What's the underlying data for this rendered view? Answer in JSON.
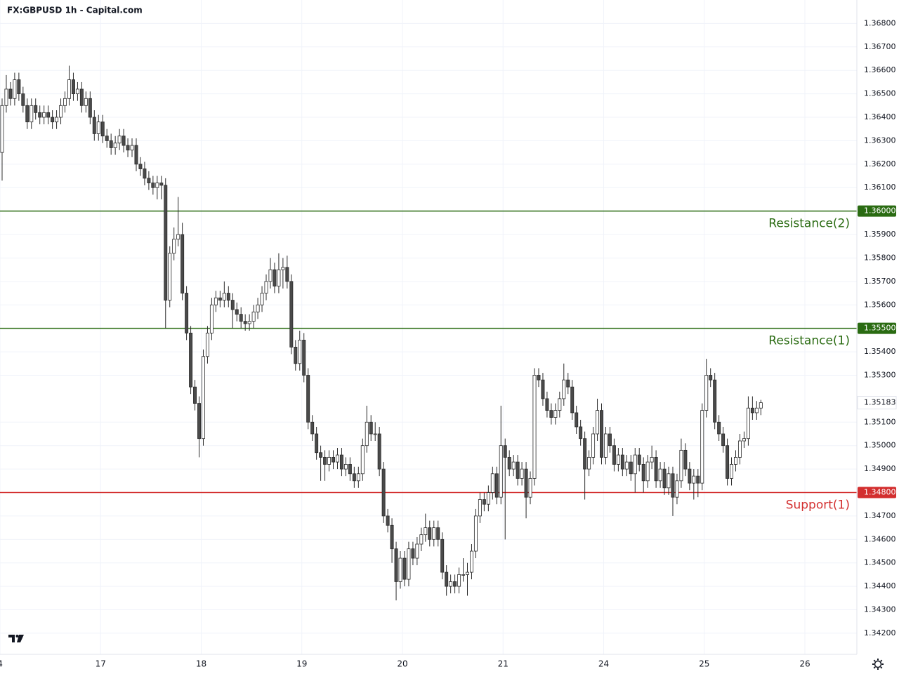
{
  "chart_data": {
    "type": "candlestick",
    "title": "FX:GBPUSD 1h - Capital.com",
    "xlim": [
      0,
      204.4
    ],
    "ylim": [
      1.3411,
      1.369
    ],
    "grid": true,
    "up_color": "#ffffff",
    "down_color": "#4a4a4a",
    "xticks": [
      {
        "value": 0,
        "label": "4"
      },
      {
        "value": 24,
        "label": "17"
      },
      {
        "value": 48,
        "label": "18"
      },
      {
        "value": 72,
        "label": "19"
      },
      {
        "value": 96,
        "label": "20"
      },
      {
        "value": 120,
        "label": "21"
      },
      {
        "value": 144,
        "label": "24"
      },
      {
        "value": 168,
        "label": "25"
      },
      {
        "value": 192,
        "label": "26"
      }
    ],
    "yticks": [
      {
        "value": 1.368,
        "label": "1.36800"
      },
      {
        "value": 1.367,
        "label": "1.36700"
      },
      {
        "value": 1.366,
        "label": "1.36600"
      },
      {
        "value": 1.365,
        "label": "1.36500"
      },
      {
        "value": 1.364,
        "label": "1.36400"
      },
      {
        "value": 1.363,
        "label": "1.36300"
      },
      {
        "value": 1.362,
        "label": "1.36200"
      },
      {
        "value": 1.361,
        "label": "1.36100"
      },
      {
        "value": 1.359,
        "label": "1.35900"
      },
      {
        "value": 1.358,
        "label": "1.35800"
      },
      {
        "value": 1.357,
        "label": "1.35700"
      },
      {
        "value": 1.356,
        "label": "1.35600"
      },
      {
        "value": 1.354,
        "label": "1.35400"
      },
      {
        "value": 1.353,
        "label": "1.35300"
      },
      {
        "value": 1.351,
        "label": "1.35100"
      },
      {
        "value": 1.35,
        "label": "1.35000"
      },
      {
        "value": 1.349,
        "label": "1.34900"
      },
      {
        "value": 1.347,
        "label": "1.34700"
      },
      {
        "value": 1.346,
        "label": "1.34600"
      },
      {
        "value": 1.345,
        "label": "1.34500"
      },
      {
        "value": 1.344,
        "label": "1.34400"
      },
      {
        "value": 1.343,
        "label": "1.34300"
      },
      {
        "value": 1.342,
        "label": "1.34200"
      }
    ],
    "levels": [
      {
        "name": "Resistance(2)",
        "value": 1.36,
        "label": "1.36000",
        "color": "#2a6b12"
      },
      {
        "name": "Resistance(1)",
        "value": 1.355,
        "label": "1.35500",
        "color": "#2a6b12"
      },
      {
        "name": "Support(1)",
        "value": 1.348,
        "label": "1.34800",
        "color": "#d32f2f"
      }
    ],
    "last_price": {
      "value": 1.35183,
      "label": "1.35183"
    },
    "candles": [
      [
        1.3625,
        1.3648,
        1.3613,
        1.3645
      ],
      [
        1.3645,
        1.3658,
        1.3642,
        1.3652
      ],
      [
        1.3652,
        1.3655,
        1.3645,
        1.3648
      ],
      [
        1.3648,
        1.3659,
        1.3645,
        1.3656
      ],
      [
        1.3656,
        1.3659,
        1.3647,
        1.365
      ],
      [
        1.365,
        1.3653,
        1.3642,
        1.3645
      ],
      [
        1.3645,
        1.3648,
        1.3635,
        1.3638
      ],
      [
        1.3638,
        1.3648,
        1.3635,
        1.3645
      ],
      [
        1.3645,
        1.3648,
        1.3639,
        1.3642
      ],
      [
        1.3642,
        1.3645,
        1.3637,
        1.364
      ],
      [
        1.364,
        1.3645,
        1.3637,
        1.3642
      ],
      [
        1.3642,
        1.3645,
        1.3637,
        1.364
      ],
      [
        1.364,
        1.3643,
        1.3635,
        1.3638
      ],
      [
        1.3638,
        1.3643,
        1.3635,
        1.364
      ],
      [
        1.364,
        1.3648,
        1.3637,
        1.3645
      ],
      [
        1.3645,
        1.3651,
        1.3642,
        1.3648
      ],
      [
        1.3648,
        1.3662,
        1.3645,
        1.3656
      ],
      [
        1.3656,
        1.3659,
        1.3647,
        1.365
      ],
      [
        1.365,
        1.3655,
        1.3647,
        1.3652
      ],
      [
        1.3652,
        1.3655,
        1.3642,
        1.3645
      ],
      [
        1.3645,
        1.3651,
        1.3642,
        1.3648
      ],
      [
        1.3648,
        1.3651,
        1.3637,
        1.364
      ],
      [
        1.364,
        1.3643,
        1.363,
        1.3633
      ],
      [
        1.3633,
        1.3641,
        1.363,
        1.3638
      ],
      [
        1.3638,
        1.3641,
        1.3629,
        1.3632
      ],
      [
        1.3632,
        1.3635,
        1.3627,
        1.363
      ],
      [
        1.363,
        1.3633,
        1.3624,
        1.3627
      ],
      [
        1.3627,
        1.3632,
        1.3624,
        1.3629
      ],
      [
        1.3629,
        1.3635,
        1.3626,
        1.3632
      ],
      [
        1.3632,
        1.3635,
        1.3625,
        1.3628
      ],
      [
        1.3628,
        1.3631,
        1.3623,
        1.3626
      ],
      [
        1.3626,
        1.3631,
        1.3623,
        1.3628
      ],
      [
        1.3628,
        1.3631,
        1.3617,
        1.362
      ],
      [
        1.362,
        1.3623,
        1.3615,
        1.3618
      ],
      [
        1.3618,
        1.3621,
        1.3611,
        1.3614
      ],
      [
        1.3614,
        1.3617,
        1.3609,
        1.3612
      ],
      [
        1.3612,
        1.3615,
        1.3607,
        1.361
      ],
      [
        1.361,
        1.3615,
        1.3605,
        1.3612
      ],
      [
        1.3612,
        1.3615,
        1.3605,
        1.3611
      ],
      [
        1.3611,
        1.3614,
        1.355,
        1.3562
      ],
      [
        1.3562,
        1.3585,
        1.3559,
        1.3582
      ],
      [
        1.3582,
        1.3593,
        1.3579,
        1.3588
      ],
      [
        1.3588,
        1.3606,
        1.3585,
        1.359
      ],
      [
        1.359,
        1.3595,
        1.3562,
        1.3565
      ],
      [
        1.3565,
        1.3568,
        1.3545,
        1.3548
      ],
      [
        1.3548,
        1.3551,
        1.3522,
        1.3525
      ],
      [
        1.3525,
        1.3528,
        1.3515,
        1.3518
      ],
      [
        1.3518,
        1.3521,
        1.3495,
        1.3503
      ],
      [
        1.3503,
        1.3541,
        1.35,
        1.3538
      ],
      [
        1.3538,
        1.3551,
        1.3535,
        1.3548
      ],
      [
        1.3548,
        1.3563,
        1.3545,
        1.356
      ],
      [
        1.356,
        1.3566,
        1.3557,
        1.3563
      ],
      [
        1.3563,
        1.3566,
        1.3559,
        1.3562
      ],
      [
        1.3562,
        1.357,
        1.3559,
        1.3565
      ],
      [
        1.3565,
        1.3568,
        1.3559,
        1.3562
      ],
      [
        1.3562,
        1.3565,
        1.355,
        1.3558
      ],
      [
        1.3558,
        1.3561,
        1.3553,
        1.3556
      ],
      [
        1.3556,
        1.3559,
        1.355,
        1.3553
      ],
      [
        1.3553,
        1.3556,
        1.3549,
        1.3552
      ],
      [
        1.3552,
        1.3556,
        1.3549,
        1.3553
      ],
      [
        1.3553,
        1.356,
        1.355,
        1.3557
      ],
      [
        1.3557,
        1.3563,
        1.3554,
        1.356
      ],
      [
        1.356,
        1.3568,
        1.3557,
        1.3565
      ],
      [
        1.3565,
        1.3573,
        1.3562,
        1.357
      ],
      [
        1.357,
        1.358,
        1.3567,
        1.3575
      ],
      [
        1.3575,
        1.3578,
        1.3565,
        1.3568
      ],
      [
        1.3568,
        1.3582,
        1.3565,
        1.3575
      ],
      [
        1.3575,
        1.358,
        1.3567,
        1.3576
      ],
      [
        1.3576,
        1.3581,
        1.3567,
        1.357
      ],
      [
        1.357,
        1.3573,
        1.3539,
        1.3542
      ],
      [
        1.3542,
        1.3545,
        1.3532,
        1.3535
      ],
      [
        1.3535,
        1.3549,
        1.3532,
        1.3545
      ],
      [
        1.3545,
        1.3548,
        1.3527,
        1.353
      ],
      [
        1.353,
        1.3533,
        1.3507,
        1.351
      ],
      [
        1.351,
        1.3513,
        1.3502,
        1.3505
      ],
      [
        1.3505,
        1.3508,
        1.3494,
        1.3497
      ],
      [
        1.3497,
        1.35,
        1.3485,
        1.3495
      ],
      [
        1.3495,
        1.3498,
        1.3485,
        1.3492
      ],
      [
        1.3492,
        1.3498,
        1.3489,
        1.3495
      ],
      [
        1.3495,
        1.3498,
        1.349,
        1.3493
      ],
      [
        1.3493,
        1.3499,
        1.349,
        1.3496
      ],
      [
        1.3496,
        1.3499,
        1.3487,
        1.349
      ],
      [
        1.349,
        1.3495,
        1.3487,
        1.3492
      ],
      [
        1.3492,
        1.3495,
        1.3485,
        1.3488
      ],
      [
        1.3488,
        1.3491,
        1.3482,
        1.3485
      ],
      [
        1.3485,
        1.3491,
        1.3482,
        1.3488
      ],
      [
        1.3488,
        1.3503,
        1.3485,
        1.35
      ],
      [
        1.35,
        1.3517,
        1.3497,
        1.351
      ],
      [
        1.351,
        1.3513,
        1.3502,
        1.3505
      ],
      [
        1.3505,
        1.351,
        1.3502,
        1.3505
      ],
      [
        1.3505,
        1.3508,
        1.3487,
        1.349
      ],
      [
        1.349,
        1.3493,
        1.3467,
        1.347
      ],
      [
        1.347,
        1.3473,
        1.3463,
        1.3466
      ],
      [
        1.3466,
        1.3469,
        1.345,
        1.3456
      ],
      [
        1.3456,
        1.3459,
        1.3434,
        1.3442
      ],
      [
        1.3442,
        1.3455,
        1.3439,
        1.3452
      ],
      [
        1.3452,
        1.3455,
        1.344,
        1.3443
      ],
      [
        1.3443,
        1.3459,
        1.344,
        1.3456
      ],
      [
        1.3456,
        1.3459,
        1.3449,
        1.3452
      ],
      [
        1.3452,
        1.3461,
        1.3449,
        1.3458
      ],
      [
        1.3458,
        1.3465,
        1.3455,
        1.3462
      ],
      [
        1.3462,
        1.3471,
        1.3459,
        1.3465
      ],
      [
        1.3465,
        1.3468,
        1.3457,
        1.346
      ],
      [
        1.346,
        1.3468,
        1.3457,
        1.3465
      ],
      [
        1.3465,
        1.3468,
        1.3457,
        1.346
      ],
      [
        1.346,
        1.3463,
        1.3443,
        1.3446
      ],
      [
        1.3446,
        1.3449,
        1.3436,
        1.344
      ],
      [
        1.344,
        1.3445,
        1.3437,
        1.3442
      ],
      [
        1.3442,
        1.3445,
        1.3437,
        1.344
      ],
      [
        1.344,
        1.3448,
        1.3437,
        1.3445
      ],
      [
        1.3445,
        1.3452,
        1.3442,
        1.3445
      ],
      [
        1.3445,
        1.345,
        1.3436,
        1.3446
      ],
      [
        1.3446,
        1.3458,
        1.3443,
        1.3455
      ],
      [
        1.3455,
        1.3473,
        1.3452,
        1.347
      ],
      [
        1.347,
        1.348,
        1.3467,
        1.3477
      ],
      [
        1.3477,
        1.348,
        1.3472,
        1.3475
      ],
      [
        1.3475,
        1.3483,
        1.3472,
        1.348
      ],
      [
        1.348,
        1.3491,
        1.3477,
        1.3488
      ],
      [
        1.3488,
        1.3491,
        1.3475,
        1.3478
      ],
      [
        1.3478,
        1.3517,
        1.3475,
        1.35
      ],
      [
        1.35,
        1.3503,
        1.346,
        1.3495
      ],
      [
        1.3495,
        1.3498,
        1.3487,
        1.349
      ],
      [
        1.349,
        1.3496,
        1.3487,
        1.3493
      ],
      [
        1.3493,
        1.3496,
        1.3483,
        1.3486
      ],
      [
        1.3486,
        1.3493,
        1.3483,
        1.349
      ],
      [
        1.349,
        1.3493,
        1.3469,
        1.3478
      ],
      [
        1.3478,
        1.3489,
        1.3475,
        1.3486
      ],
      [
        1.3486,
        1.3533,
        1.3483,
        1.353
      ],
      [
        1.353,
        1.3533,
        1.3525,
        1.3528
      ],
      [
        1.3528,
        1.3531,
        1.3517,
        1.352
      ],
      [
        1.352,
        1.3523,
        1.3512,
        1.3515
      ],
      [
        1.3515,
        1.3518,
        1.3509,
        1.3512
      ],
      [
        1.3512,
        1.3518,
        1.3509,
        1.3515
      ],
      [
        1.3515,
        1.3523,
        1.3512,
        1.352
      ],
      [
        1.352,
        1.3535,
        1.3517,
        1.3528
      ],
      [
        1.3528,
        1.3531,
        1.3522,
        1.3525
      ],
      [
        1.3525,
        1.3528,
        1.3511,
        1.3514
      ],
      [
        1.3514,
        1.3517,
        1.3505,
        1.3508
      ],
      [
        1.3508,
        1.3511,
        1.35,
        1.3503
      ],
      [
        1.3503,
        1.3506,
        1.3477,
        1.349
      ],
      [
        1.349,
        1.3498,
        1.3487,
        1.3495
      ],
      [
        1.3495,
        1.3508,
        1.3492,
        1.3505
      ],
      [
        1.3505,
        1.352,
        1.3502,
        1.3515
      ],
      [
        1.3515,
        1.3518,
        1.3492,
        1.3495
      ],
      [
        1.3495,
        1.3508,
        1.3492,
        1.3505
      ],
      [
        1.3505,
        1.3508,
        1.3497,
        1.35
      ],
      [
        1.35,
        1.3503,
        1.3489,
        1.3492
      ],
      [
        1.3492,
        1.3499,
        1.3489,
        1.3496
      ],
      [
        1.3496,
        1.3499,
        1.3487,
        1.349
      ],
      [
        1.349,
        1.3496,
        1.3487,
        1.3493
      ],
      [
        1.3493,
        1.3496,
        1.3485,
        1.3488
      ],
      [
        1.3488,
        1.3499,
        1.348,
        1.3496
      ],
      [
        1.3496,
        1.3499,
        1.3489,
        1.3492
      ],
      [
        1.3492,
        1.3495,
        1.348,
        1.3485
      ],
      [
        1.3485,
        1.3496,
        1.3482,
        1.3493
      ],
      [
        1.3493,
        1.35,
        1.349,
        1.3495
      ],
      [
        1.3495,
        1.3498,
        1.3482,
        1.3485
      ],
      [
        1.3485,
        1.3493,
        1.3482,
        1.349
      ],
      [
        1.349,
        1.3493,
        1.3479,
        1.3482
      ],
      [
        1.3482,
        1.3491,
        1.3479,
        1.3488
      ],
      [
        1.3488,
        1.3491,
        1.347,
        1.3478
      ],
      [
        1.3478,
        1.3488,
        1.3475,
        1.3485
      ],
      [
        1.3485,
        1.3503,
        1.3482,
        1.3498
      ],
      [
        1.3498,
        1.3501,
        1.3487,
        1.349
      ],
      [
        1.349,
        1.3493,
        1.3481,
        1.3484
      ],
      [
        1.3484,
        1.349,
        1.3477,
        1.3487
      ],
      [
        1.3487,
        1.349,
        1.3478,
        1.3484
      ],
      [
        1.3484,
        1.3518,
        1.3481,
        1.3515
      ],
      [
        1.3515,
        1.3537,
        1.3512,
        1.353
      ],
      [
        1.353,
        1.3533,
        1.3525,
        1.3528
      ],
      [
        1.3528,
        1.3531,
        1.3507,
        1.351
      ],
      [
        1.351,
        1.3513,
        1.3502,
        1.3505
      ],
      [
        1.3505,
        1.3508,
        1.3497,
        1.35
      ],
      [
        1.35,
        1.3503,
        1.3483,
        1.3486
      ],
      [
        1.3486,
        1.3495,
        1.3483,
        1.3492
      ],
      [
        1.3492,
        1.3498,
        1.3489,
        1.3495
      ],
      [
        1.3495,
        1.3505,
        1.3492,
        1.3502
      ],
      [
        1.3502,
        1.3506,
        1.3499,
        1.3503
      ],
      [
        1.3503,
        1.3521,
        1.35,
        1.3516
      ],
      [
        1.3516,
        1.3521,
        1.3511,
        1.3514
      ],
      [
        1.3514,
        1.3519,
        1.3511,
        1.3516
      ],
      [
        1.3516,
        1.35195,
        1.3513,
        1.35183
      ]
    ]
  }
}
